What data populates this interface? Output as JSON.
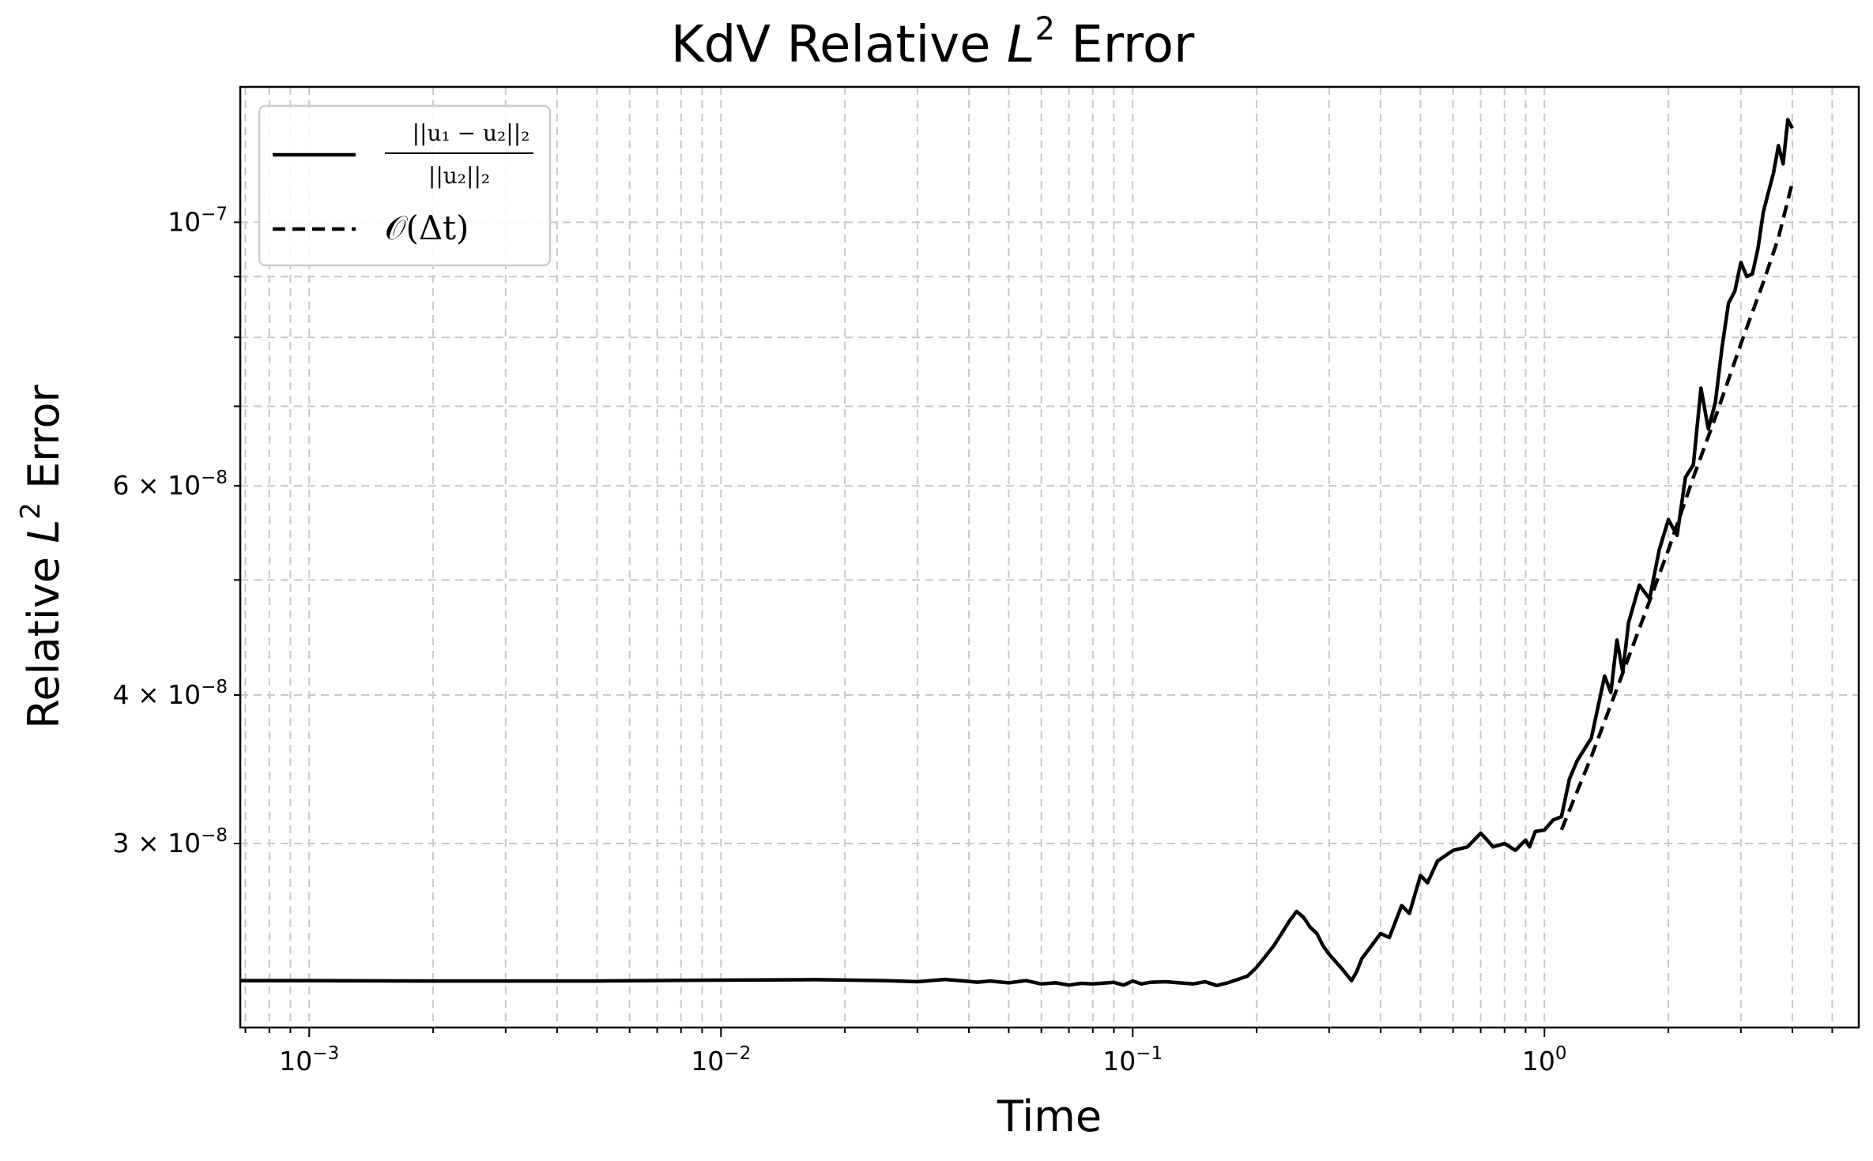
{
  "chart_data": {
    "type": "line",
    "title": "KdV Relative L² Error",
    "title_parts": {
      "prefix": "KdV Relative ",
      "var": "L",
      "exp": "2",
      "suffix": " Error"
    },
    "xlabel": "Time",
    "ylabel": "Relative L² Error",
    "ylabel_parts": {
      "prefix": "Relative ",
      "var": "L",
      "exp": "2",
      "suffix": " Error"
    },
    "x_scale": "log",
    "y_scale": "log",
    "xlim": [
      0.00068,
      5.8
    ],
    "ylim": [
      2.1e-08,
      1.3e-07
    ],
    "grid": true,
    "legend_position": "top-left",
    "x_ticks": [
      {
        "value": 0.001,
        "base": "10",
        "exp": "−3"
      },
      {
        "value": 0.01,
        "base": "10",
        "exp": "−2"
      },
      {
        "value": 0.1,
        "base": "10",
        "exp": "−1"
      },
      {
        "value": 1,
        "base": "10",
        "exp": "0"
      }
    ],
    "y_ticks": [
      {
        "value": 3e-08,
        "mant": "3 × 10",
        "exp": "−8"
      },
      {
        "value": 4e-08,
        "mant": "4 × 10",
        "exp": "−8"
      },
      {
        "value": 6e-08,
        "mant": "6 × 10",
        "exp": "−8"
      },
      {
        "value": 1e-07,
        "mant": "10",
        "exp": "−7"
      }
    ],
    "series": [
      {
        "name": "||u1 − u2||2 / ||u2||2",
        "legend_numerator": "||u₁ − u₂||₂",
        "legend_denominator": "||u₂||₂",
        "style": "solid",
        "color": "#000000",
        "x": [
          0.00068,
          0.001,
          0.002,
          0.005,
          0.01,
          0.017,
          0.025,
          0.03,
          0.035,
          0.038,
          0.042,
          0.045,
          0.05,
          0.055,
          0.06,
          0.065,
          0.07,
          0.075,
          0.08,
          0.09,
          0.095,
          0.1,
          0.105,
          0.11,
          0.12,
          0.13,
          0.14,
          0.15,
          0.16,
          0.17,
          0.18,
          0.19,
          0.2,
          0.21,
          0.22,
          0.23,
          0.24,
          0.25,
          0.26,
          0.27,
          0.28,
          0.29,
          0.3,
          0.32,
          0.34,
          0.35,
          0.36,
          0.38,
          0.4,
          0.42,
          0.45,
          0.47,
          0.5,
          0.52,
          0.55,
          0.6,
          0.65,
          0.7,
          0.72,
          0.75,
          0.8,
          0.85,
          0.9,
          0.92,
          0.95,
          1.0,
          1.05,
          1.1,
          1.15,
          1.2,
          1.3,
          1.4,
          1.45,
          1.5,
          1.55,
          1.6,
          1.7,
          1.8,
          1.9,
          2.0,
          2.1,
          2.2,
          2.3,
          2.4,
          2.5,
          2.6,
          2.7,
          2.8,
          2.9,
          3.0,
          3.1,
          3.2,
          3.3,
          3.4,
          3.5,
          3.6,
          3.7,
          3.8,
          3.9,
          4.0
        ],
        "y": [
          2.3e-08,
          2.3e-08,
          2.298e-08,
          2.298e-08,
          2.302e-08,
          2.304e-08,
          2.3e-08,
          2.295e-08,
          2.305e-08,
          2.3e-08,
          2.293e-08,
          2.298e-08,
          2.29e-08,
          2.3e-08,
          2.285e-08,
          2.29e-08,
          2.28e-08,
          2.288e-08,
          2.285e-08,
          2.292e-08,
          2.28e-08,
          2.298e-08,
          2.285e-08,
          2.292e-08,
          2.295e-08,
          2.29e-08,
          2.285e-08,
          2.295e-08,
          2.278e-08,
          2.29e-08,
          2.305e-08,
          2.32e-08,
          2.36e-08,
          2.41e-08,
          2.46e-08,
          2.52e-08,
          2.58e-08,
          2.63e-08,
          2.6e-08,
          2.55e-08,
          2.52e-08,
          2.46e-08,
          2.42e-08,
          2.36e-08,
          2.3e-08,
          2.34e-08,
          2.4e-08,
          2.46e-08,
          2.52e-08,
          2.5e-08,
          2.66e-08,
          2.62e-08,
          2.82e-08,
          2.78e-08,
          2.9e-08,
          2.96e-08,
          2.98e-08,
          3.06e-08,
          3.03e-08,
          2.98e-08,
          3e-08,
          2.96e-08,
          3.02e-08,
          2.98e-08,
          3.07e-08,
          3.08e-08,
          3.14e-08,
          3.16e-08,
          3.4e-08,
          3.52e-08,
          3.68e-08,
          4.15e-08,
          4.02e-08,
          4.45e-08,
          4.18e-08,
          4.6e-08,
          4.95e-08,
          4.82e-08,
          5.3e-08,
          5.62e-08,
          5.45e-08,
          6.1e-08,
          6.25e-08,
          7.25e-08,
          6.7e-08,
          7.05e-08,
          7.85e-08,
          8.55e-08,
          8.75e-08,
          9.25e-08,
          9e-08,
          9.05e-08,
          9.5e-08,
          1.02e-07,
          1.06e-07,
          1.1e-07,
          1.16e-07,
          1.12e-07,
          1.22e-07,
          1.2e-07
        ]
      },
      {
        "name": "𝒪(Δt)",
        "legend_label": "𝒪(Δt)",
        "style": "dashed",
        "color": "#000000",
        "x": [
          1.1,
          1.3,
          1.5,
          1.8,
          2.0,
          2.3,
          2.6,
          3.0,
          3.4,
          3.7,
          4.0
        ],
        "y": [
          3.08e-08,
          3.55e-08,
          4.05e-08,
          4.8e-08,
          5.3e-08,
          6.1e-08,
          6.85e-08,
          7.9e-08,
          8.9e-08,
          9.7e-08,
          1.08e-07
        ]
      }
    ]
  }
}
